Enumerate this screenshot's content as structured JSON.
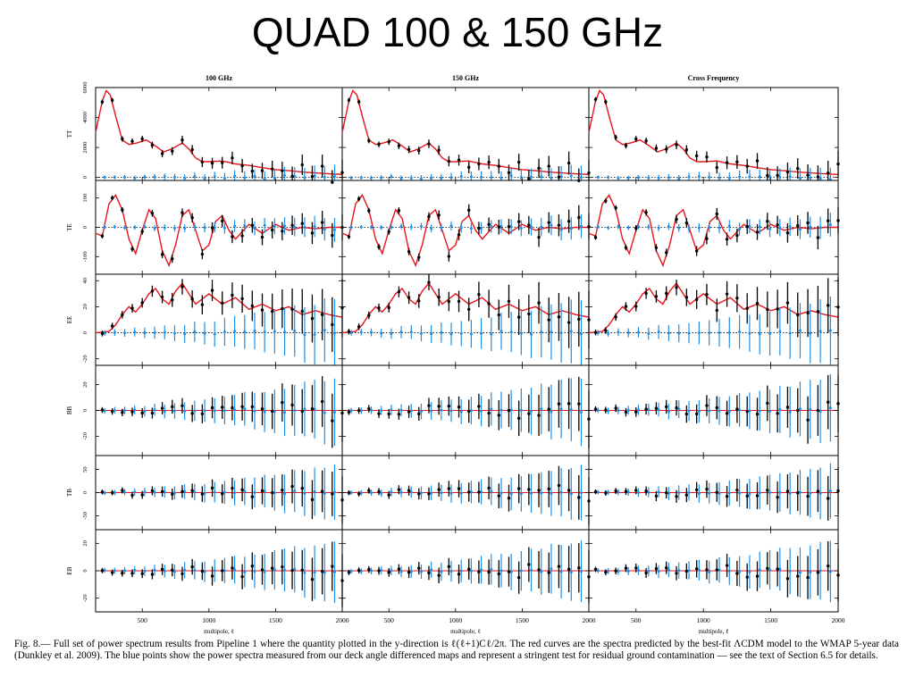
{
  "slide": {
    "title": "QUAD 100 & 150 GHz"
  },
  "caption": "Fig. 8.— Full set of power spectrum results from Pipeline 1 where the quantity plotted in the y-direction is ℓ(ℓ+1)Cℓ/2π. The red curves are the spectra predicted by the best-fit ΛCDM model to the WMAP 5-year data (Dunkley et al. 2009). The blue points show the power spectra measured from our deck angle differenced maps and represent a stringent test for residual ground contamination — see the text of Section 6.5 for details.",
  "colors": {
    "model": "#e8141c",
    "data": "#000000",
    "deck": "#1f8fe6",
    "zero_line": "#e8141c"
  },
  "chart_data": {
    "type": "scatter",
    "columns": [
      "100 GHz",
      "150 GHz",
      "Cross Frequency"
    ],
    "xlabel": "multipole, ℓ",
    "xlim": [
      150,
      2000
    ],
    "xticks": [
      "500",
      "1000",
      "1500",
      "2000"
    ],
    "xtick_values": [
      500,
      1000,
      1500,
      2000
    ],
    "bins": [
      200,
      275,
      350,
      425,
      500,
      575,
      650,
      725,
      800,
      875,
      950,
      1025,
      1100,
      1175,
      1250,
      1325,
      1400,
      1475,
      1550,
      1625,
      1700,
      1775,
      1850,
      1925,
      2000
    ],
    "rows": [
      {
        "label": "TT",
        "ylim": [
          -200,
          6000
        ],
        "yticks": [
          0,
          2000,
          4000,
          6000
        ],
        "zero_line": "dotted",
        "model": [
          [
            150,
            3000
          ],
          [
            200,
            5100
          ],
          [
            230,
            5800
          ],
          [
            260,
            5500
          ],
          [
            300,
            4100
          ],
          [
            350,
            2500
          ],
          [
            400,
            2200
          ],
          [
            460,
            2300
          ],
          [
            530,
            2500
          ],
          [
            600,
            2100
          ],
          [
            660,
            1700
          ],
          [
            720,
            1900
          ],
          [
            800,
            2300
          ],
          [
            850,
            1900
          ],
          [
            900,
            1300
          ],
          [
            950,
            1050
          ],
          [
            1000,
            1050
          ],
          [
            1100,
            1100
          ],
          [
            1200,
            900
          ],
          [
            1300,
            800
          ],
          [
            1400,
            650
          ],
          [
            1500,
            520
          ],
          [
            1600,
            450
          ],
          [
            1700,
            360
          ],
          [
            1800,
            300
          ],
          [
            1900,
            240
          ],
          [
            2000,
            200
          ]
        ]
      },
      {
        "label": "TE",
        "ylim": [
          -160,
          160
        ],
        "yticks": [
          -100,
          0,
          100
        ],
        "zero_line": "dotted",
        "model": [
          [
            150,
            -20
          ],
          [
            200,
            -30
          ],
          [
            250,
            80
          ],
          [
            300,
            110
          ],
          [
            350,
            60
          ],
          [
            400,
            -40
          ],
          [
            450,
            -90
          ],
          [
            500,
            -10
          ],
          [
            550,
            60
          ],
          [
            600,
            30
          ],
          [
            650,
            -80
          ],
          [
            700,
            -130
          ],
          [
            750,
            -60
          ],
          [
            800,
            40
          ],
          [
            850,
            60
          ],
          [
            900,
            -10
          ],
          [
            950,
            -80
          ],
          [
            1000,
            -60
          ],
          [
            1050,
            20
          ],
          [
            1100,
            40
          ],
          [
            1150,
            -10
          ],
          [
            1200,
            -40
          ],
          [
            1300,
            10
          ],
          [
            1400,
            -20
          ],
          [
            1500,
            10
          ],
          [
            1600,
            -10
          ],
          [
            1700,
            0
          ],
          [
            1800,
            -5
          ],
          [
            1900,
            0
          ],
          [
            2000,
            0
          ]
        ]
      },
      {
        "label": "EE",
        "ylim": [
          -25,
          45
        ],
        "yticks": [
          -20,
          0,
          20,
          40
        ],
        "zero_line": "dotted",
        "model": [
          [
            150,
            0
          ],
          [
            250,
            1
          ],
          [
            300,
            6
          ],
          [
            350,
            14
          ],
          [
            400,
            20
          ],
          [
            450,
            16
          ],
          [
            500,
            22
          ],
          [
            550,
            30
          ],
          [
            600,
            34
          ],
          [
            650,
            26
          ],
          [
            700,
            22
          ],
          [
            750,
            32
          ],
          [
            800,
            38
          ],
          [
            850,
            30
          ],
          [
            900,
            22
          ],
          [
            950,
            26
          ],
          [
            1000,
            30
          ],
          [
            1100,
            22
          ],
          [
            1200,
            27
          ],
          [
            1300,
            18
          ],
          [
            1400,
            22
          ],
          [
            1500,
            17
          ],
          [
            1600,
            20
          ],
          [
            1700,
            14
          ],
          [
            1800,
            17
          ],
          [
            1900,
            14
          ],
          [
            2000,
            12
          ]
        ]
      },
      {
        "label": "BB",
        "ylim": [
          -35,
          35
        ],
        "yticks": [
          -20,
          0,
          20
        ],
        "zero_line": "solid"
      },
      {
        "label": "TB",
        "ylim": [
          -80,
          80
        ],
        "yticks": [
          -50,
          0,
          50
        ],
        "zero_line": "solid"
      },
      {
        "label": "EB",
        "ylim": [
          -30,
          30
        ],
        "yticks": [
          -20,
          0,
          20
        ],
        "zero_line": "solid"
      }
    ],
    "series": [
      {
        "name": "data",
        "marker": "point-with-errorbars"
      },
      {
        "name": "deck angle differenced",
        "marker": "point-with-errorbars"
      },
      {
        "name": "ΛCDM model",
        "marker": "line"
      }
    ],
    "grid": false,
    "legend": "none"
  }
}
